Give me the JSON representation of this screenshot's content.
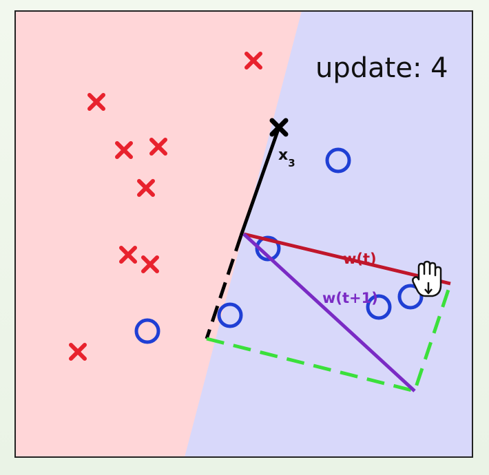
{
  "update_label": "update: 4",
  "point_label": "x",
  "point_label_sub": "3",
  "w_t_label": "w(t)",
  "w_t1_label": "w(t+1)",
  "colors": {
    "negative_region": "#ffd6d8",
    "positive_region": "#d8d8fa",
    "cross": "#e8222d",
    "circle": "#1f3fd4",
    "w_t": "#c0162b",
    "w_t1": "#7a2bc4",
    "boundary": "#000000",
    "construction": "#3be03b"
  },
  "icons": [
    "cross-marker",
    "circle-marker",
    "hand-cursor-icon"
  ]
}
